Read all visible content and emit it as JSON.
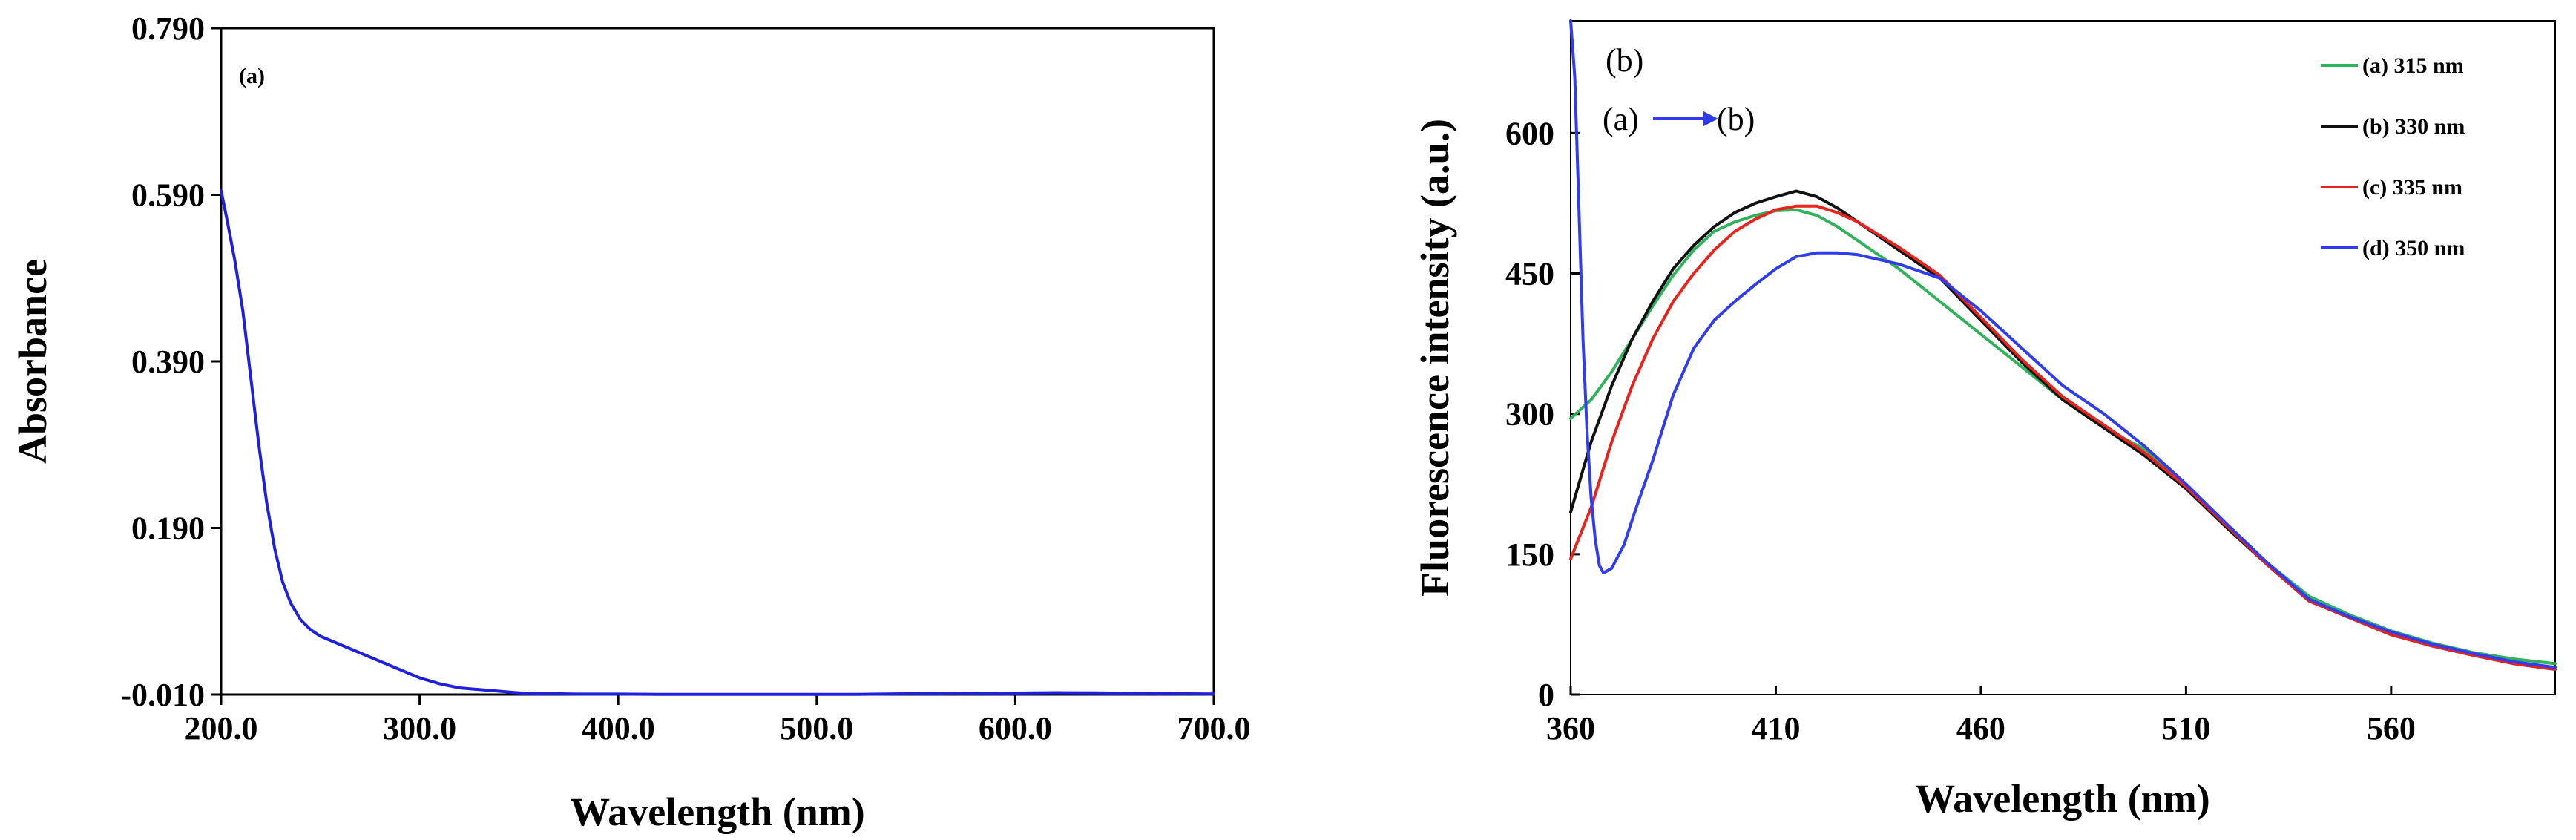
{
  "chart_data": [
    {
      "type": "line",
      "panel_label": "(a)",
      "xlabel": "Wavelength (nm)",
      "ylabel": "Absorbance",
      "xlim": [
        200,
        700
      ],
      "ylim": [
        -0.01,
        0.79
      ],
      "xticks": [
        200,
        300,
        400,
        500,
        600,
        700
      ],
      "xtick_labels": [
        "200.0",
        "300.0",
        "400.0",
        "500.0",
        "600.0",
        "700.0"
      ],
      "yticks": [
        -0.01,
        0.19,
        0.39,
        0.59,
        0.79
      ],
      "ytick_labels": [
        "-0.010",
        "0.190",
        "0.390",
        "0.590",
        "0.790"
      ],
      "series": [
        {
          "name": "Absorbance",
          "color": "#1f1fe0",
          "x": [
            200,
            203,
            207,
            211,
            215,
            219,
            223,
            227,
            231,
            235,
            240,
            245,
            250,
            260,
            270,
            280,
            290,
            300,
            310,
            320,
            330,
            340,
            350,
            360,
            370,
            380,
            390,
            400,
            420,
            440,
            460,
            480,
            500,
            520,
            540,
            560,
            580,
            600,
            620,
            640,
            660,
            680,
            700
          ],
          "y": [
            0.595,
            0.56,
            0.51,
            0.45,
            0.37,
            0.29,
            0.22,
            0.165,
            0.125,
            0.1,
            0.08,
            0.068,
            0.06,
            0.05,
            0.04,
            0.03,
            0.02,
            0.01,
            0.003,
            -0.002,
            -0.004,
            -0.006,
            -0.008,
            -0.009,
            -0.009,
            -0.0095,
            -0.0095,
            -0.0095,
            -0.0098,
            -0.0098,
            -0.0098,
            -0.0098,
            -0.0098,
            -0.0097,
            -0.0092,
            -0.0088,
            -0.0085,
            -0.0082,
            -0.0078,
            -0.008,
            -0.0085,
            -0.009,
            -0.0093
          ]
        }
      ]
    },
    {
      "type": "line",
      "panel_label": "(b)",
      "annotation": {
        "from": "(a)",
        "to": "(b)"
      },
      "xlabel": "Wavelength (nm)",
      "ylabel": "Fluorescence intensity (a.u.)",
      "xlim": [
        360,
        600
      ],
      "ylim": [
        0,
        720
      ],
      "xticks": [
        360,
        410,
        460,
        510,
        560
      ],
      "xtick_labels": [
        "360",
        "410",
        "460",
        "510",
        "560"
      ],
      "yticks": [
        0,
        150,
        300,
        450,
        600
      ],
      "ytick_labels": [
        "0",
        "150",
        "300",
        "450",
        "600"
      ],
      "legend_position": "top-right",
      "series": [
        {
          "name": "(a) 315 nm",
          "color": "#2fb25a",
          "x": [
            360,
            365,
            370,
            375,
            380,
            385,
            390,
            395,
            400,
            405,
            410,
            415,
            420,
            425,
            430,
            440,
            450,
            460,
            470,
            480,
            490,
            500,
            510,
            520,
            530,
            540,
            550,
            560,
            570,
            580,
            590,
            600
          ],
          "y": [
            295,
            315,
            345,
            380,
            415,
            448,
            475,
            495,
            505,
            512,
            517,
            518,
            512,
            500,
            485,
            455,
            420,
            385,
            350,
            315,
            285,
            262,
            225,
            180,
            140,
            105,
            85,
            68,
            55,
            45,
            38,
            33
          ]
        },
        {
          "name": "(b) 330 nm",
          "color": "#111111",
          "x": [
            360,
            365,
            370,
            375,
            380,
            385,
            390,
            395,
            400,
            405,
            410,
            415,
            420,
            425,
            430,
            440,
            450,
            460,
            470,
            480,
            490,
            500,
            510,
            520,
            530,
            540,
            550,
            560,
            570,
            580,
            590,
            600
          ],
          "y": [
            195,
            270,
            330,
            380,
            420,
            455,
            480,
            500,
            515,
            525,
            532,
            538,
            532,
            520,
            505,
            475,
            445,
            400,
            355,
            315,
            285,
            255,
            220,
            178,
            138,
            100,
            82,
            64,
            52,
            42,
            33,
            27
          ]
        },
        {
          "name": "(c) 335 nm",
          "color": "#e8221c",
          "x": [
            360,
            365,
            370,
            375,
            380,
            385,
            390,
            395,
            400,
            405,
            410,
            415,
            420,
            425,
            430,
            440,
            450,
            460,
            470,
            480,
            490,
            500,
            510,
            520,
            530,
            540,
            550,
            560,
            570,
            580,
            590,
            600
          ],
          "y": [
            145,
            200,
            270,
            330,
            380,
            420,
            450,
            475,
            495,
            508,
            518,
            522,
            522,
            515,
            505,
            478,
            448,
            403,
            358,
            318,
            288,
            258,
            222,
            180,
            138,
            100,
            82,
            64,
            52,
            42,
            33,
            27
          ]
        },
        {
          "name": "(d) 350 nm",
          "color": "#2f3cf0",
          "x": [
            360,
            361,
            362,
            363,
            364,
            365,
            366,
            367,
            368,
            370,
            373,
            376,
            380,
            385,
            390,
            395,
            400,
            405,
            410,
            415,
            420,
            425,
            430,
            440,
            450,
            460,
            470,
            480,
            490,
            500,
            510,
            520,
            530,
            540,
            550,
            560,
            570,
            580,
            590,
            600
          ],
          "y": [
            720,
            660,
            520,
            380,
            280,
            210,
            165,
            138,
            130,
            135,
            160,
            200,
            250,
            320,
            370,
            400,
            420,
            438,
            455,
            468,
            472,
            472,
            470,
            460,
            445,
            410,
            370,
            330,
            300,
            265,
            225,
            182,
            140,
            102,
            83,
            67,
            54,
            44,
            35,
            29
          ]
        }
      ]
    }
  ]
}
